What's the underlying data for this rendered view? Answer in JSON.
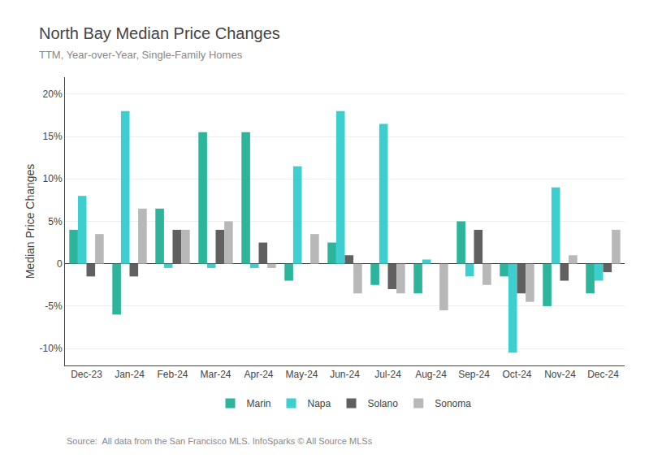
{
  "chart_data": {
    "type": "bar",
    "title": "North Bay Median Price Changes",
    "subtitle": "TTM, Year-over-Year, Single-Family Homes",
    "ylabel": "Median Price Changes",
    "annotations": [
      "Source:  All data from the San Francisco MLS. InfoSparks © All Source MLSs"
    ],
    "categories": [
      "Dec-23",
      "Jan-24",
      "Feb-24",
      "Mar-24",
      "Apr-24",
      "May-24",
      "Jun-24",
      "Jul-24",
      "Aug-24",
      "Sep-24",
      "Oct-24",
      "Nov-24",
      "Dec-24"
    ],
    "series": [
      {
        "name": "Marin",
        "color": "#2cb59a",
        "values": [
          4.0,
          -6.0,
          6.5,
          15.5,
          15.5,
          -2.0,
          2.5,
          -2.5,
          -3.5,
          5.0,
          -1.5,
          -5.0,
          -3.5
        ]
      },
      {
        "name": "Napa",
        "color": "#3dcfcf",
        "values": [
          8.0,
          18.0,
          -0.5,
          -0.5,
          -0.5,
          11.5,
          18.0,
          16.5,
          0.5,
          -1.5,
          -10.5,
          9.0,
          -2.0
        ]
      },
      {
        "name": "Solano",
        "color": "#606060",
        "values": [
          -1.5,
          -1.5,
          4.0,
          4.0,
          2.5,
          0.0,
          1.0,
          -3.0,
          0.0,
          4.0,
          -3.5,
          -2.0,
          -1.0
        ]
      },
      {
        "name": "Sonoma",
        "color": "#b8b8b8",
        "values": [
          3.5,
          6.5,
          4.0,
          5.0,
          -0.5,
          3.5,
          -3.5,
          -3.5,
          -5.5,
          -2.5,
          -4.5,
          1.0,
          4.0
        ]
      }
    ],
    "ylim": [
      -12,
      22
    ],
    "yticks": [
      {
        "value": -10,
        "label": "-10%"
      },
      {
        "value": -5,
        "label": "-5%"
      },
      0,
      {
        "value": 5,
        "label": "5%"
      },
      {
        "value": 10,
        "label": "10%"
      },
      {
        "value": 15,
        "label": "15%"
      },
      {
        "value": 20,
        "label": "20%"
      }
    ],
    "grid": true,
    "legend": "bottom"
  }
}
